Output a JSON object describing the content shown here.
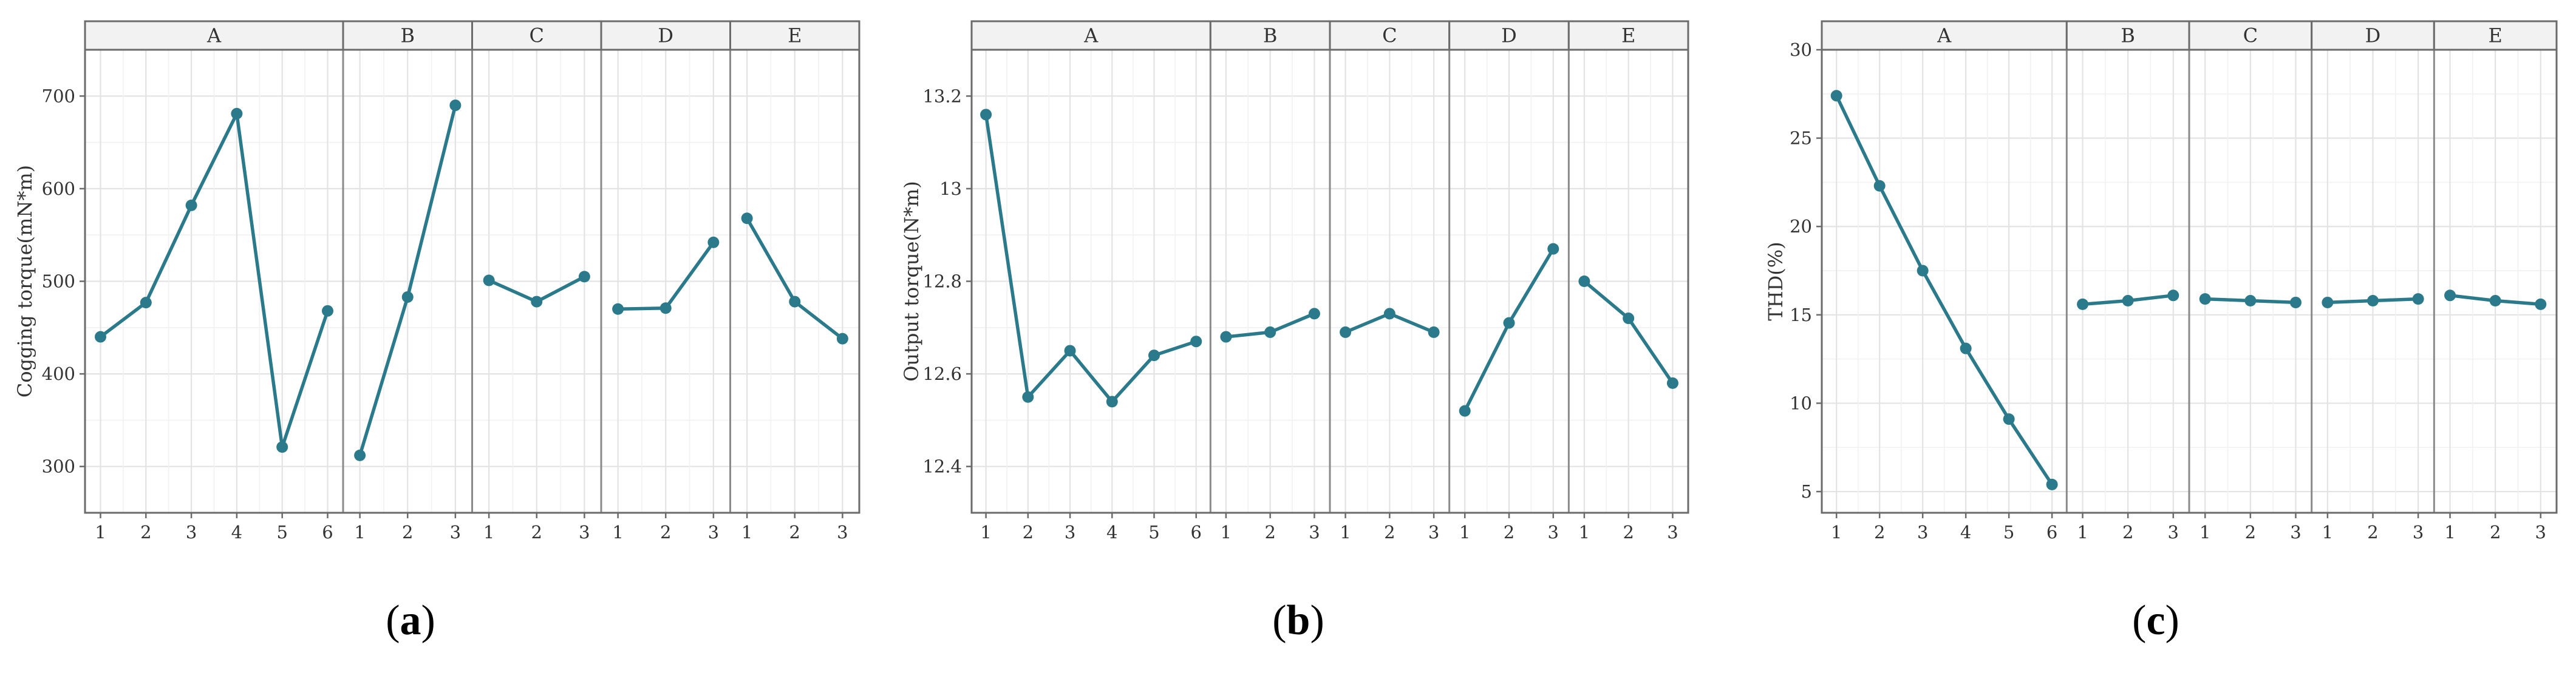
{
  "colors": {
    "series": "#2a7a8c",
    "strip_background": "#f2f2f2",
    "frame": "#6b6b6b",
    "grid": "#e3e3e3"
  },
  "chart_data": [
    {
      "type": "line",
      "caption": {
        "open": "(",
        "letter": "a",
        "close": ")"
      },
      "ylabel": "Cogging torque(mN*m)",
      "ylim": [
        250,
        750
      ],
      "yticks": [
        300,
        400,
        500,
        600,
        700
      ],
      "grid": true,
      "facets": [
        {
          "name": "A",
          "x": [
            "1",
            "2",
            "3",
            "4",
            "5",
            "6"
          ],
          "values": [
            440,
            477,
            582,
            681,
            321,
            468
          ]
        },
        {
          "name": "B",
          "x": [
            "1",
            "2",
            "3"
          ],
          "values": [
            312,
            483,
            690
          ]
        },
        {
          "name": "C",
          "x": [
            "1",
            "2",
            "3"
          ],
          "values": [
            501,
            478,
            505
          ]
        },
        {
          "name": "D",
          "x": [
            "1",
            "2",
            "3"
          ],
          "values": [
            470,
            471,
            542
          ]
        },
        {
          "name": "E",
          "x": [
            "1",
            "2",
            "3"
          ],
          "values": [
            568,
            478,
            438
          ]
        }
      ]
    },
    {
      "type": "line",
      "caption": {
        "open": "(",
        "letter": "b",
        "close": ")"
      },
      "ylabel": "Output torque(N*m)",
      "ylim": [
        12.3,
        13.3
      ],
      "yticks": [
        12.4,
        12.6,
        12.8,
        13.0,
        13.2
      ],
      "grid": true,
      "facets": [
        {
          "name": "A",
          "x": [
            "1",
            "2",
            "3",
            "4",
            "5",
            "6"
          ],
          "values": [
            13.16,
            12.55,
            12.65,
            12.54,
            12.64,
            12.67
          ]
        },
        {
          "name": "B",
          "x": [
            "1",
            "2",
            "3"
          ],
          "values": [
            12.68,
            12.69,
            12.73
          ]
        },
        {
          "name": "C",
          "x": [
            "1",
            "2",
            "3"
          ],
          "values": [
            12.69,
            12.73,
            12.69
          ]
        },
        {
          "name": "D",
          "x": [
            "1",
            "2",
            "3"
          ],
          "values": [
            12.52,
            12.71,
            12.87
          ]
        },
        {
          "name": "E",
          "x": [
            "1",
            "2",
            "3"
          ],
          "values": [
            12.8,
            12.72,
            12.58
          ]
        }
      ]
    },
    {
      "type": "line",
      "caption": {
        "open": "(",
        "letter": "c",
        "close": ")"
      },
      "ylabel": "THD(%)",
      "ylim": [
        3.8,
        30
      ],
      "yticks": [
        5,
        10,
        15,
        20,
        25,
        30
      ],
      "grid": true,
      "facets": [
        {
          "name": "A",
          "x": [
            "1",
            "2",
            "3",
            "4",
            "5",
            "6"
          ],
          "values": [
            27.4,
            22.3,
            17.5,
            13.1,
            9.1,
            5.4
          ]
        },
        {
          "name": "B",
          "x": [
            "1",
            "2",
            "3"
          ],
          "values": [
            15.6,
            15.8,
            16.1
          ]
        },
        {
          "name": "C",
          "x": [
            "1",
            "2",
            "3"
          ],
          "values": [
            15.9,
            15.8,
            15.7
          ]
        },
        {
          "name": "D",
          "x": [
            "1",
            "2",
            "3"
          ],
          "values": [
            15.7,
            15.8,
            15.9
          ]
        },
        {
          "name": "E",
          "x": [
            "1",
            "2",
            "3"
          ],
          "values": [
            16.1,
            15.8,
            15.6
          ]
        }
      ]
    }
  ]
}
